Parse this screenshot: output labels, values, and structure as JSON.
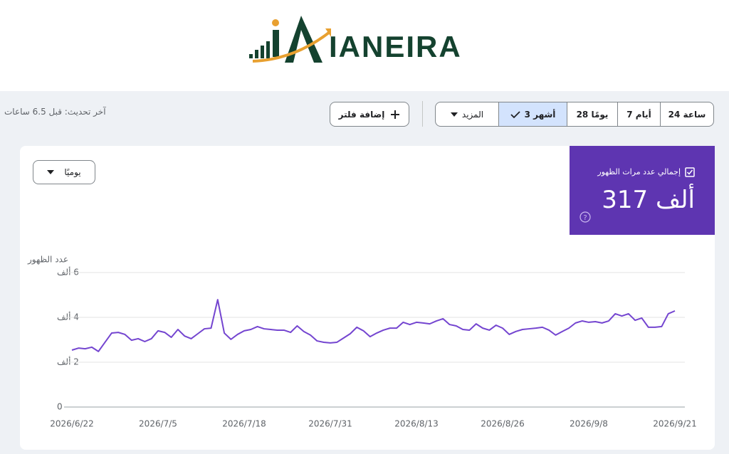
{
  "logo": {
    "text": "IANEIRA"
  },
  "last_updated": "آخر تحديث: قبل 6.5 ساعات",
  "add_filter": "إضافة فلتر",
  "date_ranges": {
    "items": [
      "24 ساعة",
      "7 أيام",
      "28 يومًا",
      "3 أشهر"
    ],
    "selected": 3,
    "more": "المزيد"
  },
  "granularity": "يوميًا",
  "metric": {
    "label": "إجمالي عدد مرات الظهور",
    "value": "317 ألف"
  },
  "chart_data": {
    "type": "line",
    "y_label": "عدد الظهور",
    "color": "#7445d0",
    "grid": true,
    "ylim": [
      0,
      6000
    ],
    "yticks": [
      0,
      {
        "value": 2000,
        "label": "2 ألف"
      },
      {
        "value": 4000,
        "label": "4 ألف"
      },
      {
        "value": 6000,
        "label": "6 ألف"
      }
    ],
    "categories": [
      "2026/6/22",
      null,
      null,
      null,
      null,
      null,
      null,
      null,
      null,
      null,
      null,
      null,
      null,
      "2026/7/5",
      null,
      null,
      null,
      null,
      null,
      null,
      null,
      null,
      null,
      null,
      null,
      null,
      "2026/7/18",
      null,
      null,
      null,
      null,
      null,
      null,
      null,
      null,
      null,
      null,
      null,
      null,
      "2026/7/31",
      null,
      null,
      null,
      null,
      null,
      null,
      null,
      null,
      null,
      null,
      null,
      null,
      "2026/8/13",
      null,
      null,
      null,
      null,
      null,
      null,
      null,
      null,
      null,
      null,
      null,
      null,
      "2026/8/26",
      null,
      null,
      null,
      null,
      null,
      null,
      null,
      null,
      null,
      null,
      null,
      null,
      "2026/9/8",
      null,
      null,
      null,
      null,
      null,
      null,
      null,
      null,
      null,
      null,
      null,
      null,
      "2026/9/21"
    ],
    "values": [
      2540,
      2630,
      2600,
      2670,
      2480,
      2890,
      3300,
      3330,
      3240,
      2980,
      3050,
      2920,
      3050,
      3400,
      3330,
      3110,
      3460,
      3170,
      3050,
      3270,
      3490,
      3520,
      4790,
      3300,
      3020,
      3240,
      3400,
      3460,
      3590,
      3490,
      3460,
      3430,
      3430,
      3330,
      3620,
      3370,
      3210,
      2950,
      2890,
      2860,
      2890,
      3080,
      3270,
      3560,
      3400,
      3140,
      3300,
      3430,
      3520,
      3520,
      3780,
      3680,
      3780,
      3750,
      3710,
      3840,
      3940,
      3680,
      3620,
      3460,
      3430,
      3710,
      3520,
      3430,
      3650,
      3520,
      3240,
      3370,
      3460,
      3490,
      3520,
      3560,
      3430,
      3210,
      3370,
      3520,
      3750,
      3840,
      3780,
      3810,
      3750,
      3840,
      4160,
      4060,
      4160,
      3870,
      3970,
      3560,
      3560,
      3590,
      4160,
      4290
    ]
  }
}
